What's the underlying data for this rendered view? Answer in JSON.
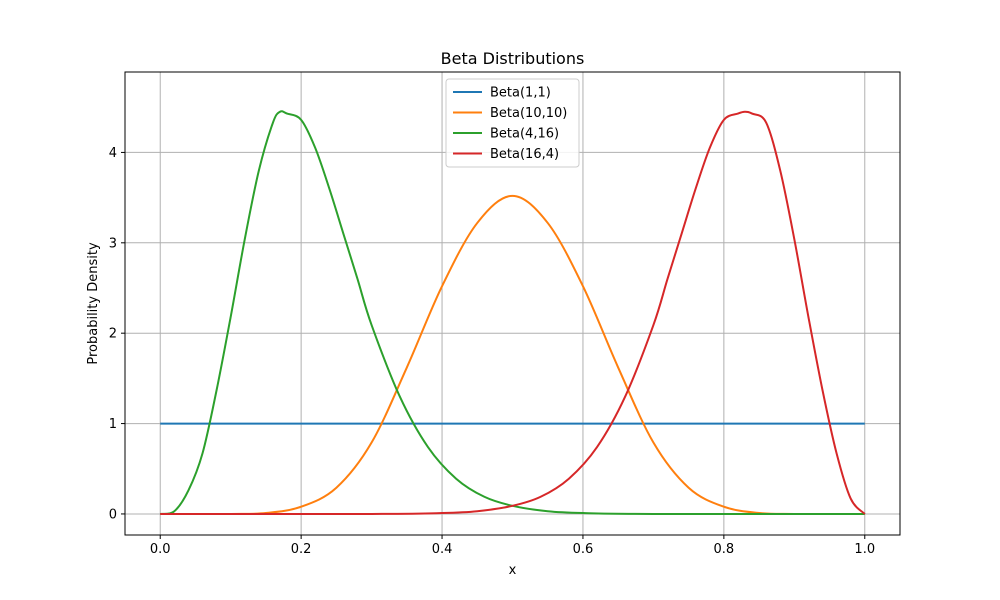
{
  "chart_data": {
    "type": "line",
    "title": "Beta Distributions",
    "xlabel": "x",
    "ylabel": "Probability Density",
    "xlim": [
      -0.05,
      1.05
    ],
    "ylim": [
      -0.233,
      4.89
    ],
    "xticks": [
      0.0,
      0.2,
      0.4,
      0.6,
      0.8,
      1.0
    ],
    "xtick_labels": [
      "0.0",
      "0.2",
      "0.4",
      "0.6",
      "0.8",
      "1.0"
    ],
    "yticks": [
      0,
      1,
      2,
      3,
      4
    ],
    "ytick_labels": [
      "0",
      "1",
      "2",
      "3",
      "4"
    ],
    "grid": true,
    "legend_position": "top-center",
    "series": [
      {
        "name": "Beta(1,1)",
        "color": "#1f77b4",
        "points": [
          [
            0,
            1
          ],
          [
            0.25,
            1
          ],
          [
            0.5,
            1
          ],
          [
            0.75,
            1
          ],
          [
            1.0,
            1
          ]
        ]
      },
      {
        "name": "Beta(10,10)",
        "color": "#ff7f0e",
        "points": [
          [
            0,
            0
          ],
          [
            0.1,
            0.0
          ],
          [
            0.15,
            0.01
          ],
          [
            0.2,
            0.08
          ],
          [
            0.25,
            0.29
          ],
          [
            0.3,
            0.79
          ],
          [
            0.35,
            1.62
          ],
          [
            0.4,
            2.52
          ],
          [
            0.45,
            3.22
          ],
          [
            0.5,
            3.52
          ],
          [
            0.55,
            3.22
          ],
          [
            0.6,
            2.52
          ],
          [
            0.65,
            1.62
          ],
          [
            0.7,
            0.79
          ],
          [
            0.75,
            0.29
          ],
          [
            0.8,
            0.08
          ],
          [
            0.85,
            0.01
          ],
          [
            0.9,
            0.0
          ],
          [
            1.0,
            0
          ]
        ]
      },
      {
        "name": "Beta(4,16)",
        "color": "#2ca02c",
        "points": [
          [
            0,
            0
          ],
          [
            0.02,
            0.03
          ],
          [
            0.04,
            0.26
          ],
          [
            0.06,
            0.67
          ],
          [
            0.08,
            1.37
          ],
          [
            0.1,
            2.18
          ],
          [
            0.12,
            3.04
          ],
          [
            0.14,
            3.8
          ],
          [
            0.16,
            4.33
          ],
          [
            0.17,
            4.45
          ],
          [
            0.18,
            4.43
          ],
          [
            0.2,
            4.36
          ],
          [
            0.22,
            4.05
          ],
          [
            0.24,
            3.6
          ],
          [
            0.26,
            3.1
          ],
          [
            0.28,
            2.6
          ],
          [
            0.3,
            2.09
          ],
          [
            0.34,
            1.3
          ],
          [
            0.38,
            0.74
          ],
          [
            0.42,
            0.39
          ],
          [
            0.46,
            0.19
          ],
          [
            0.5,
            0.09
          ],
          [
            0.55,
            0.03
          ],
          [
            0.6,
            0.01
          ],
          [
            0.7,
            0.0
          ],
          [
            1.0,
            0
          ]
        ]
      },
      {
        "name": "Beta(16,4)",
        "color": "#d62728",
        "points": [
          [
            0,
            0
          ],
          [
            0.3,
            0.0
          ],
          [
            0.4,
            0.01
          ],
          [
            0.45,
            0.03
          ],
          [
            0.5,
            0.09
          ],
          [
            0.54,
            0.19
          ],
          [
            0.58,
            0.39
          ],
          [
            0.62,
            0.74
          ],
          [
            0.66,
            1.3
          ],
          [
            0.7,
            2.09
          ],
          [
            0.72,
            2.6
          ],
          [
            0.74,
            3.1
          ],
          [
            0.76,
            3.6
          ],
          [
            0.78,
            4.05
          ],
          [
            0.8,
            4.36
          ],
          [
            0.82,
            4.43
          ],
          [
            0.83,
            4.45
          ],
          [
            0.84,
            4.43
          ],
          [
            0.86,
            4.33
          ],
          [
            0.88,
            3.8
          ],
          [
            0.9,
            3.04
          ],
          [
            0.92,
            2.18
          ],
          [
            0.94,
            1.37
          ],
          [
            0.96,
            0.67
          ],
          [
            0.98,
            0.17
          ],
          [
            1.0,
            0
          ]
        ]
      }
    ]
  }
}
